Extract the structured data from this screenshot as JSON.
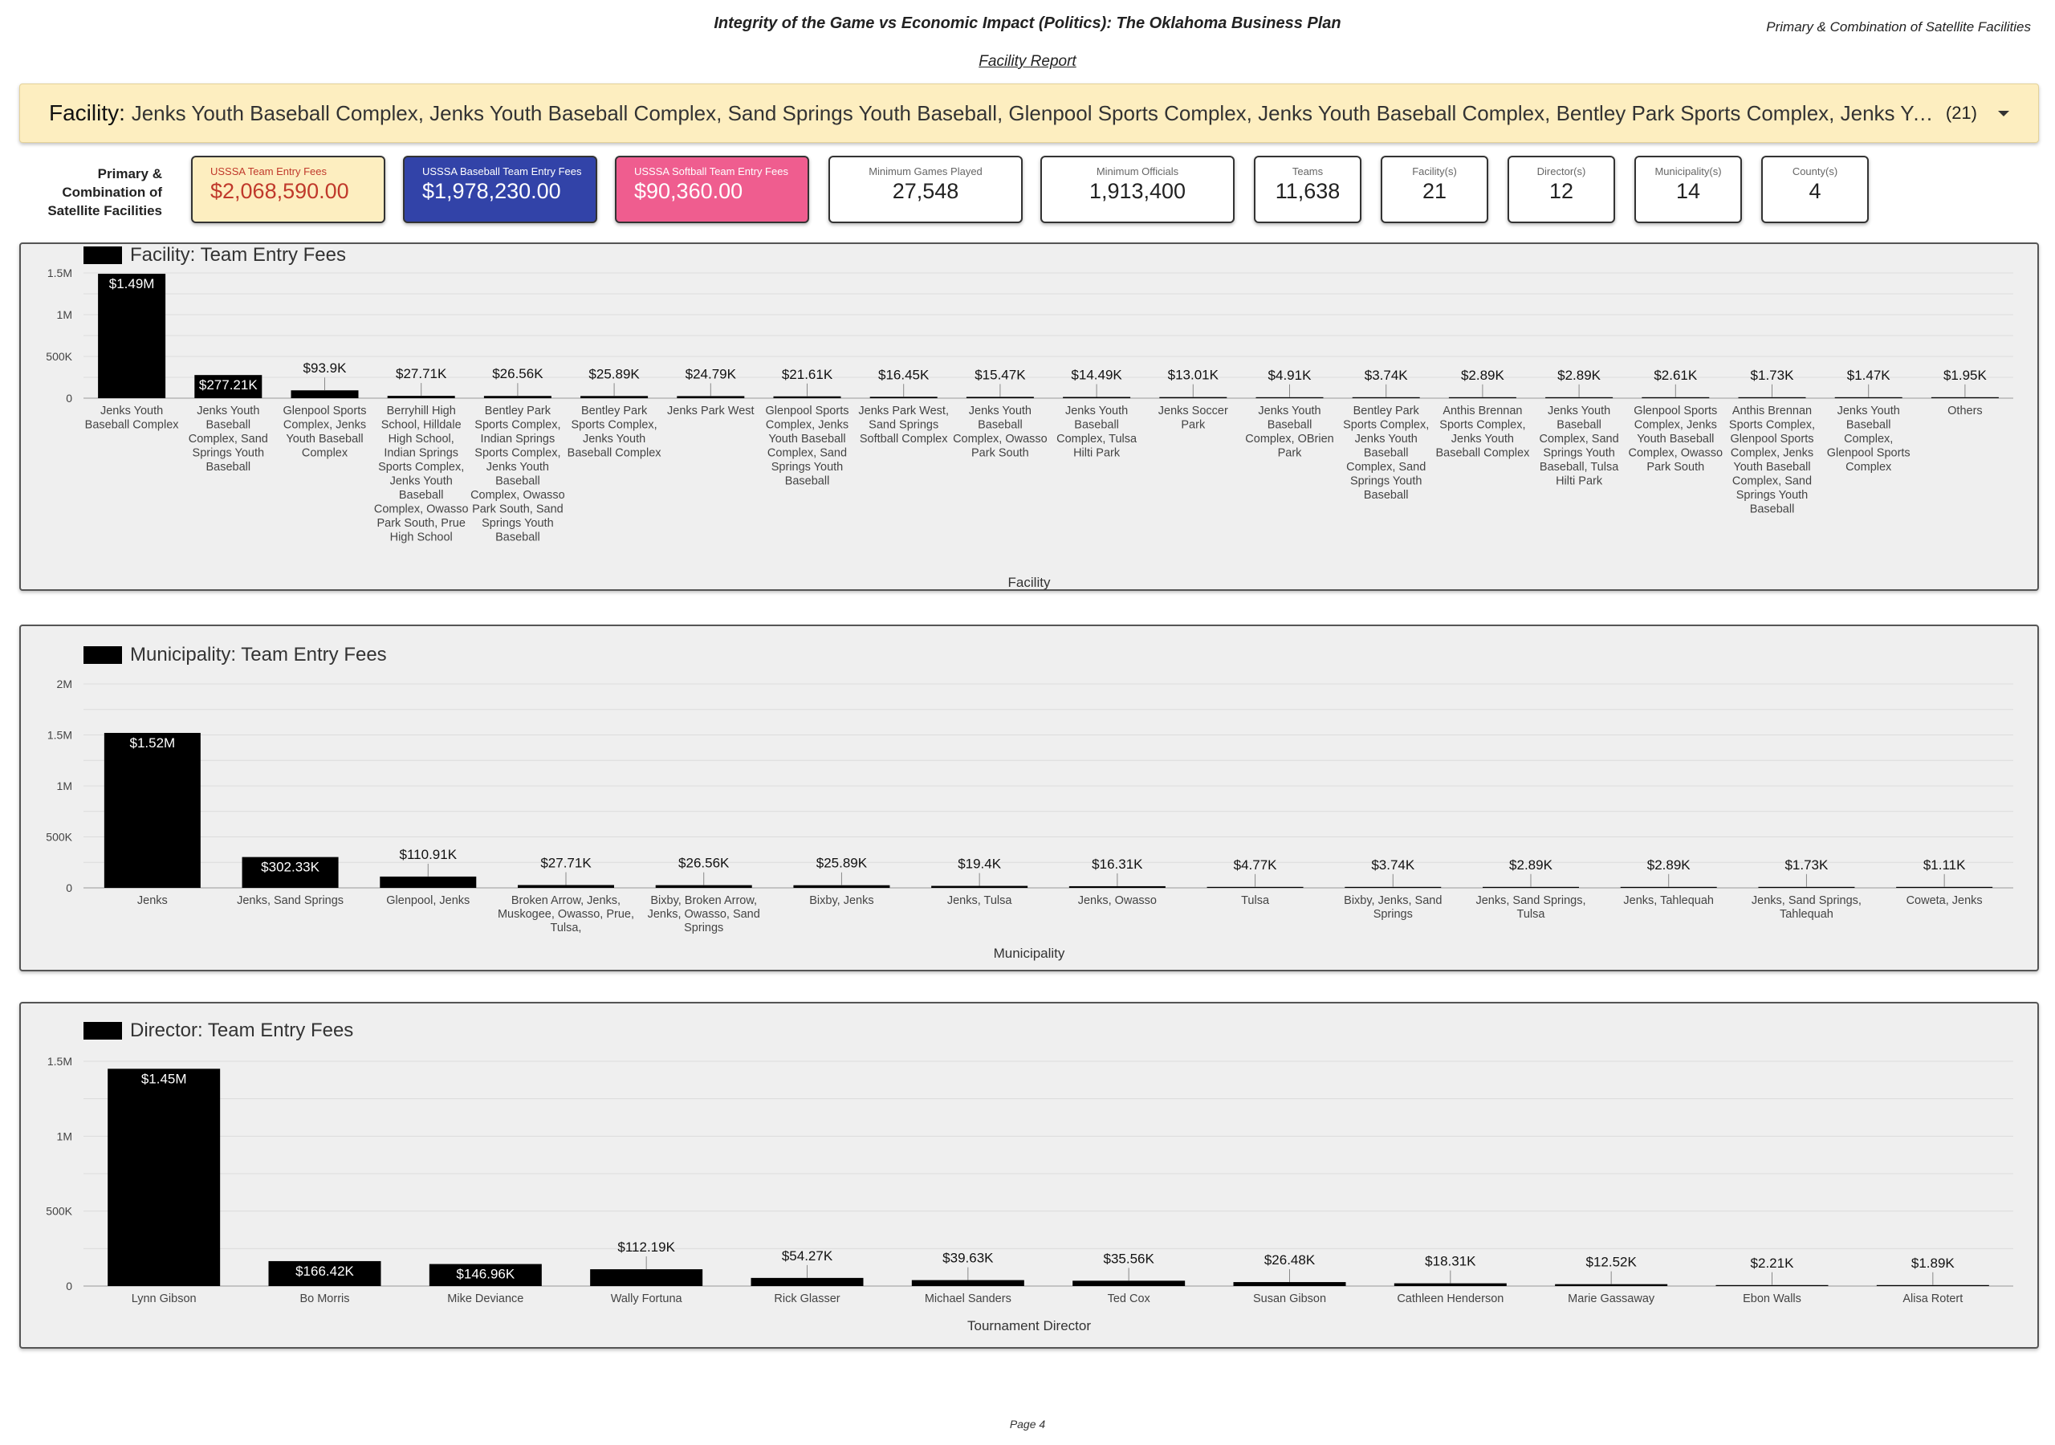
{
  "header": {
    "title": "Integrity of the Game vs Economic Impact (Politics): The Oklahoma Business Plan",
    "subtitle_right": "Primary & Combination of Satellite Facilities",
    "report_link": "Facility Report"
  },
  "filter": {
    "label": "Facility",
    "values": "Jenks Youth Baseball Complex, Jenks Youth Baseball Complex, Sand Springs Youth Baseball, Glenpool Sports Complex, Jenks Youth Baseball Complex, Bentley Park Sports Complex, Jenks Youth Baseball Complex, Sand Springs Youth Baseball, Tulsa",
    "count": "(21)"
  },
  "kpis": {
    "side_label": [
      "Primary &",
      "Combination of",
      "Satellite Facilities"
    ],
    "cards": [
      {
        "label": "USSSA Team Entry Fees",
        "value": "$2,068,590.00"
      },
      {
        "label": "USSSA Baseball Team Entry Fees",
        "value": "$1,978,230.00"
      },
      {
        "label": "USSSA Softball Team Entry Fees",
        "value": "$90,360.00"
      },
      {
        "label": "Minimum Games Played",
        "value": "27,548"
      },
      {
        "label": "Minimum Officials",
        "value": "1,913,400"
      },
      {
        "label": "Teams",
        "value": "11,638"
      },
      {
        "label": "Facility(s)",
        "value": "21"
      },
      {
        "label": "Director(s)",
        "value": "12"
      },
      {
        "label": "Municipality(s)",
        "value": "14"
      },
      {
        "label": "County(s)",
        "value": "4"
      }
    ],
    "colors": {
      "fees_bg": "#fdeec0",
      "fees_text": "#c0392b",
      "baseball_bg": "#3243a8",
      "softball_bg": "#ef5d8f"
    }
  },
  "chart_data": [
    {
      "type": "bar",
      "legend": "Facility: Team Entry Fees",
      "xlabel": "Facility",
      "ylim": [
        0,
        1500000
      ],
      "yticks": [
        {
          "v": 0,
          "label": "0"
        },
        {
          "v": 500000,
          "label": "500K"
        },
        {
          "v": 1000000,
          "label": "1M"
        },
        {
          "v": 1500000,
          "label": "1.5M"
        }
      ],
      "categories": [
        "Jenks Youth Baseball Complex",
        "Jenks Youth Baseball Complex, Sand Springs Youth Baseball",
        "Glenpool Sports Complex, Jenks Youth Baseball Complex",
        "Berryhill High School, Hilldale High School, Indian Springs Sports Complex, Jenks Youth Baseball Complex, Owasso Park South, Prue High School",
        "Bentley Park Sports Complex, Indian Springs Sports Complex, Jenks Youth Baseball Complex, Owasso Park South, Sand Springs Youth Baseball",
        "Bentley Park Sports Complex, Jenks Youth Baseball Complex",
        "Jenks Park West",
        "Glenpool Sports Complex, Jenks Youth Baseball Complex, Sand Springs Youth Baseball",
        "Jenks Park West, Sand Springs Softball Complex",
        "Jenks Youth Baseball Complex, Owasso Park South",
        "Jenks Youth Baseball Complex, Tulsa Hilti Park",
        "Jenks Soccer Park",
        "Jenks Youth Baseball Complex, OBrien Park",
        "Bentley Park Sports Complex, Jenks Youth Baseball Complex, Sand Springs Youth Baseball",
        "Anthis Brennan Sports Complex, Jenks Youth Baseball Complex",
        "Jenks Youth Baseball Complex, Sand Springs Youth Baseball, Tulsa Hilti Park",
        "Glenpool Sports Complex, Jenks Youth Baseball Complex, Owasso Park South",
        "Anthis Brennan Sports Complex, Glenpool Sports Complex, Jenks Youth Baseball Complex, Sand Springs Youth Baseball",
        "Jenks Youth Baseball Complex, Glenpool Sports Complex",
        "Others"
      ],
      "values": [
        1490000,
        277210,
        93900,
        27710,
        26560,
        25890,
        24790,
        21610,
        16450,
        15470,
        14490,
        13010,
        4910,
        3740,
        2890,
        2890,
        2610,
        1730,
        1470,
        1950
      ],
      "data_labels": [
        "$1.49M",
        "$277.21K",
        "$93.9K",
        "$27.71K",
        "$26.56K",
        "$25.89K",
        "$24.79K",
        "$21.61K",
        "$16.45K",
        "$15.47K",
        "$14.49K",
        "$13.01K",
        "$4.91K",
        "$3.74K",
        "$2.89K",
        "$2.89K",
        "$2.61K",
        "$1.73K",
        "$1.47K",
        "$1.95K"
      ]
    },
    {
      "type": "bar",
      "legend": "Municipality: Team Entry Fees",
      "xlabel": "Municipality",
      "ylim": [
        0,
        2000000
      ],
      "yticks": [
        {
          "v": 0,
          "label": "0"
        },
        {
          "v": 500000,
          "label": "500K"
        },
        {
          "v": 1000000,
          "label": "1M"
        },
        {
          "v": 1500000,
          "label": "1.5M"
        },
        {
          "v": 2000000,
          "label": "2M"
        }
      ],
      "categories": [
        "Jenks",
        "Jenks, Sand Springs",
        "Glenpool, Jenks",
        "Broken Arrow, Jenks, Muskogee, Owasso, Prue, Tulsa,",
        "Bixby, Broken Arrow, Jenks, Owasso, Sand Springs",
        "Bixby, Jenks",
        "Jenks, Tulsa",
        "Jenks, Owasso",
        "Tulsa",
        "Bixby, Jenks, Sand Springs",
        "Jenks, Sand Springs, Tulsa",
        "Jenks, Tahlequah",
        "Jenks, Sand Springs, Tahlequah",
        "Coweta, Jenks"
      ],
      "values": [
        1520000,
        302330,
        110910,
        27710,
        26560,
        25890,
        19400,
        16310,
        4770,
        3740,
        2890,
        2890,
        1730,
        1110
      ],
      "data_labels": [
        "$1.52M",
        "$302.33K",
        "$110.91K",
        "$27.71K",
        "$26.56K",
        "$25.89K",
        "$19.4K",
        "$16.31K",
        "$4.77K",
        "$3.74K",
        "$2.89K",
        "$2.89K",
        "$1.73K",
        "$1.11K"
      ]
    },
    {
      "type": "bar",
      "legend": "Director: Team Entry Fees",
      "xlabel": "Tournament Director",
      "ylim": [
        0,
        1500000
      ],
      "yticks": [
        {
          "v": 0,
          "label": "0"
        },
        {
          "v": 500000,
          "label": "500K"
        },
        {
          "v": 1000000,
          "label": "1M"
        },
        {
          "v": 1500000,
          "label": "1.5M"
        }
      ],
      "categories": [
        "Lynn Gibson",
        "Bo Morris",
        "Mike Deviance",
        "Wally Fortuna",
        "Rick Glasser",
        "Michael Sanders",
        "Ted Cox",
        "Susan Gibson",
        "Cathleen Henderson",
        "Marie Gassaway",
        "Ebon Walls",
        "Alisa Rotert"
      ],
      "values": [
        1450000,
        166420,
        146960,
        112190,
        54270,
        39630,
        35560,
        26480,
        18310,
        12520,
        2210,
        1890
      ],
      "data_labels": [
        "$1.45M",
        "$166.42K",
        "$146.96K",
        "$112.19K",
        "$54.27K",
        "$39.63K",
        "$35.56K",
        "$26.48K",
        "$18.31K",
        "$12.52K",
        "$2.21K",
        "$1.89K"
      ]
    }
  ],
  "footer": {
    "page": "Page 4"
  }
}
